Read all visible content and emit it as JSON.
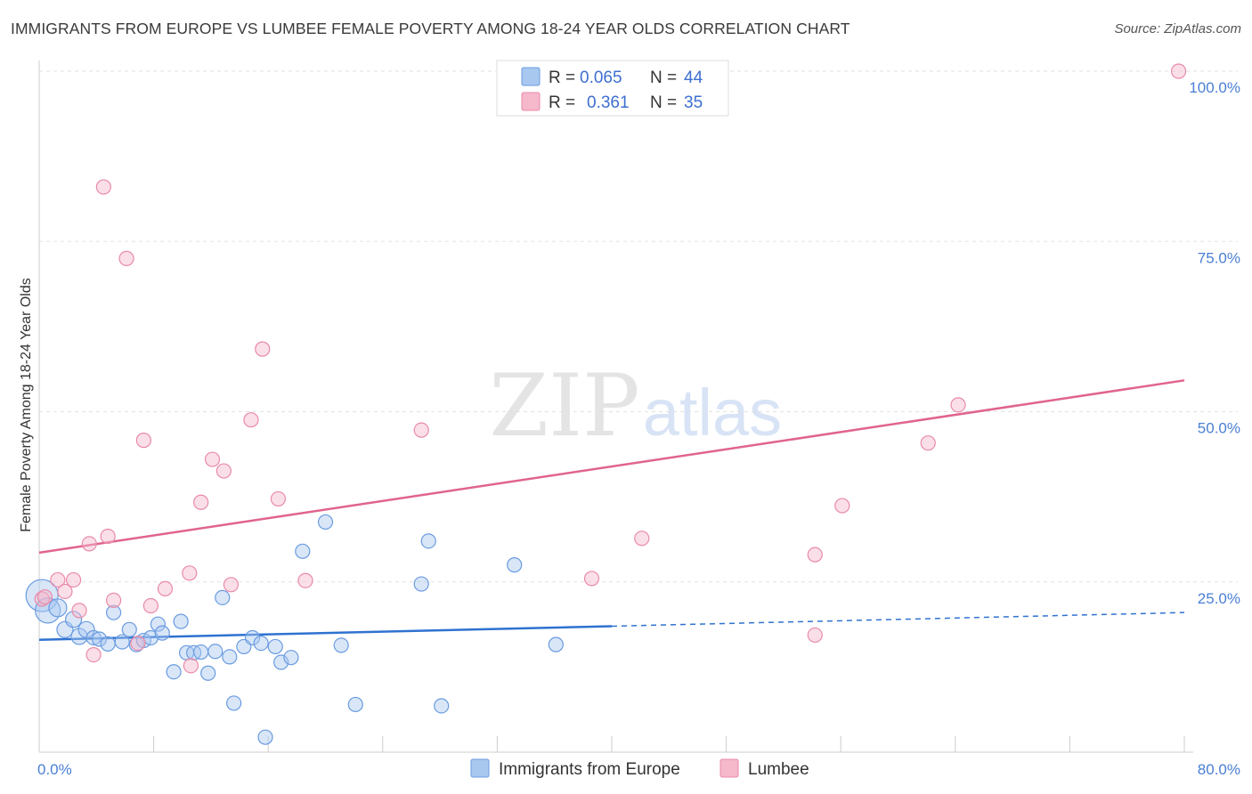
{
  "header": {
    "title": "IMMIGRANTS FROM EUROPE VS LUMBEE FEMALE POVERTY AMONG 18-24 YEAR OLDS CORRELATION CHART",
    "source": "Source: ZipAtlas.com"
  },
  "watermark": {
    "zip": "ZIP",
    "atlas": "atlas"
  },
  "colors": {
    "blue_fill": "#a9c8f0",
    "blue_stroke": "#6a9be0",
    "blue_line": "#2f72d0",
    "pink_fill": "#f6b8cb",
    "pink_stroke": "#e98aa8",
    "pink_line": "#e0648c",
    "tick_text": "#4a7fd4",
    "grid": "#e2e2e2"
  },
  "chart_data": {
    "type": "scatter",
    "title": "IMMIGRANTS FROM EUROPE VS LUMBEE FEMALE POVERTY AMONG 18-24 YEAR OLDS CORRELATION CHART",
    "xlabel": "",
    "ylabel": "Female Poverty Among 18-24 Year Olds",
    "xlim": [
      0,
      80
    ],
    "ylim": [
      0,
      100
    ],
    "x_tick_labels": [
      {
        "value": 0,
        "label": "0.0%"
      },
      {
        "value": 80,
        "label": "80.0%"
      }
    ],
    "y_tick_labels": [
      {
        "value": 25,
        "label": "25.0%"
      },
      {
        "value": 50,
        "label": "50.0%"
      },
      {
        "value": 75,
        "label": "75.0%"
      },
      {
        "value": 100,
        "label": "100.0%"
      }
    ],
    "legend": {
      "entries": [
        {
          "r_label": "R =",
          "r_value": "0.065",
          "n_label": "N =",
          "n_value": "44"
        },
        {
          "r_label": "R =",
          "r_value": "0.361",
          "n_label": "N =",
          "n_value": "35"
        }
      ]
    },
    "series": [
      {
        "name": "Immigrants from Europe",
        "color": "#a9c8f0",
        "trend": {
          "x0": 0,
          "y0": 16.5,
          "x1": 40,
          "y1": 18.5,
          "dash_to_x": 80,
          "dash_to_y": 20.5
        },
        "points": [
          [
            0.2,
            23.0,
            18
          ],
          [
            0.6,
            20.8,
            14
          ],
          [
            1.3,
            21.2,
            10
          ],
          [
            1.8,
            18.0,
            9
          ],
          [
            2.4,
            19.5,
            9
          ],
          [
            2.8,
            17.0,
            9
          ],
          [
            3.3,
            18.0,
            9
          ],
          [
            3.8,
            16.8,
            8
          ],
          [
            4.2,
            16.6,
            8
          ],
          [
            4.8,
            15.9,
            8
          ],
          [
            5.2,
            20.5,
            8
          ],
          [
            5.8,
            16.2,
            8
          ],
          [
            6.3,
            18.0,
            8
          ],
          [
            6.8,
            15.8,
            8
          ],
          [
            7.3,
            16.4,
            8
          ],
          [
            7.8,
            16.8,
            8
          ],
          [
            8.3,
            18.8,
            8
          ],
          [
            8.6,
            17.5,
            8
          ],
          [
            9.4,
            11.8,
            8
          ],
          [
            9.9,
            19.2,
            8
          ],
          [
            10.3,
            14.6,
            8
          ],
          [
            10.8,
            14.6,
            8
          ],
          [
            11.3,
            14.7,
            8
          ],
          [
            11.8,
            11.6,
            8
          ],
          [
            12.3,
            14.8,
            8
          ],
          [
            12.8,
            22.7,
            8
          ],
          [
            13.3,
            14.0,
            8
          ],
          [
            13.6,
            7.2,
            8
          ],
          [
            14.3,
            15.5,
            8
          ],
          [
            14.9,
            16.8,
            8
          ],
          [
            15.5,
            16.0,
            8
          ],
          [
            15.8,
            2.2,
            8
          ],
          [
            16.5,
            15.5,
            8
          ],
          [
            16.9,
            13.2,
            8
          ],
          [
            17.6,
            13.9,
            8
          ],
          [
            18.4,
            29.5,
            8
          ],
          [
            20.0,
            33.8,
            8
          ],
          [
            21.1,
            15.7,
            8
          ],
          [
            22.1,
            7.0,
            8
          ],
          [
            26.7,
            24.7,
            8
          ],
          [
            27.2,
            31.0,
            8
          ],
          [
            28.1,
            6.8,
            8
          ],
          [
            33.2,
            27.5,
            8
          ],
          [
            36.1,
            15.8,
            8
          ]
        ]
      },
      {
        "name": "Lumbee",
        "color": "#f6b8cb",
        "trend": {
          "x0": 0,
          "y0": 29.3,
          "x1": 80,
          "y1": 54.6
        },
        "points": [
          [
            0.2,
            22.5,
            8
          ],
          [
            0.4,
            22.8,
            8
          ],
          [
            1.3,
            25.3,
            8
          ],
          [
            1.8,
            23.6,
            8
          ],
          [
            2.4,
            25.3,
            8
          ],
          [
            2.8,
            20.8,
            8
          ],
          [
            3.5,
            30.6,
            8
          ],
          [
            3.8,
            14.3,
            8
          ],
          [
            4.5,
            83.0,
            8
          ],
          [
            4.8,
            31.7,
            8
          ],
          [
            5.2,
            22.3,
            8
          ],
          [
            6.1,
            72.5,
            8
          ],
          [
            6.9,
            16.0,
            8
          ],
          [
            7.3,
            45.8,
            8
          ],
          [
            7.8,
            21.5,
            8
          ],
          [
            8.8,
            24.0,
            8
          ],
          [
            10.5,
            26.3,
            8
          ],
          [
            10.6,
            12.7,
            8
          ],
          [
            11.3,
            36.7,
            8
          ],
          [
            12.1,
            43.0,
            8
          ],
          [
            12.9,
            41.3,
            8
          ],
          [
            13.4,
            24.6,
            8
          ],
          [
            14.8,
            48.8,
            8
          ],
          [
            15.6,
            59.2,
            8
          ],
          [
            16.7,
            37.2,
            8
          ],
          [
            18.6,
            25.2,
            8
          ],
          [
            26.7,
            47.3,
            8
          ],
          [
            38.6,
            25.5,
            8
          ],
          [
            42.1,
            31.4,
            8
          ],
          [
            54.2,
            29.0,
            8
          ],
          [
            54.2,
            17.2,
            8
          ],
          [
            56.1,
            36.2,
            8
          ],
          [
            62.1,
            45.4,
            8
          ],
          [
            64.2,
            51.0,
            8
          ],
          [
            79.6,
            100.0,
            8
          ]
        ]
      }
    ]
  }
}
